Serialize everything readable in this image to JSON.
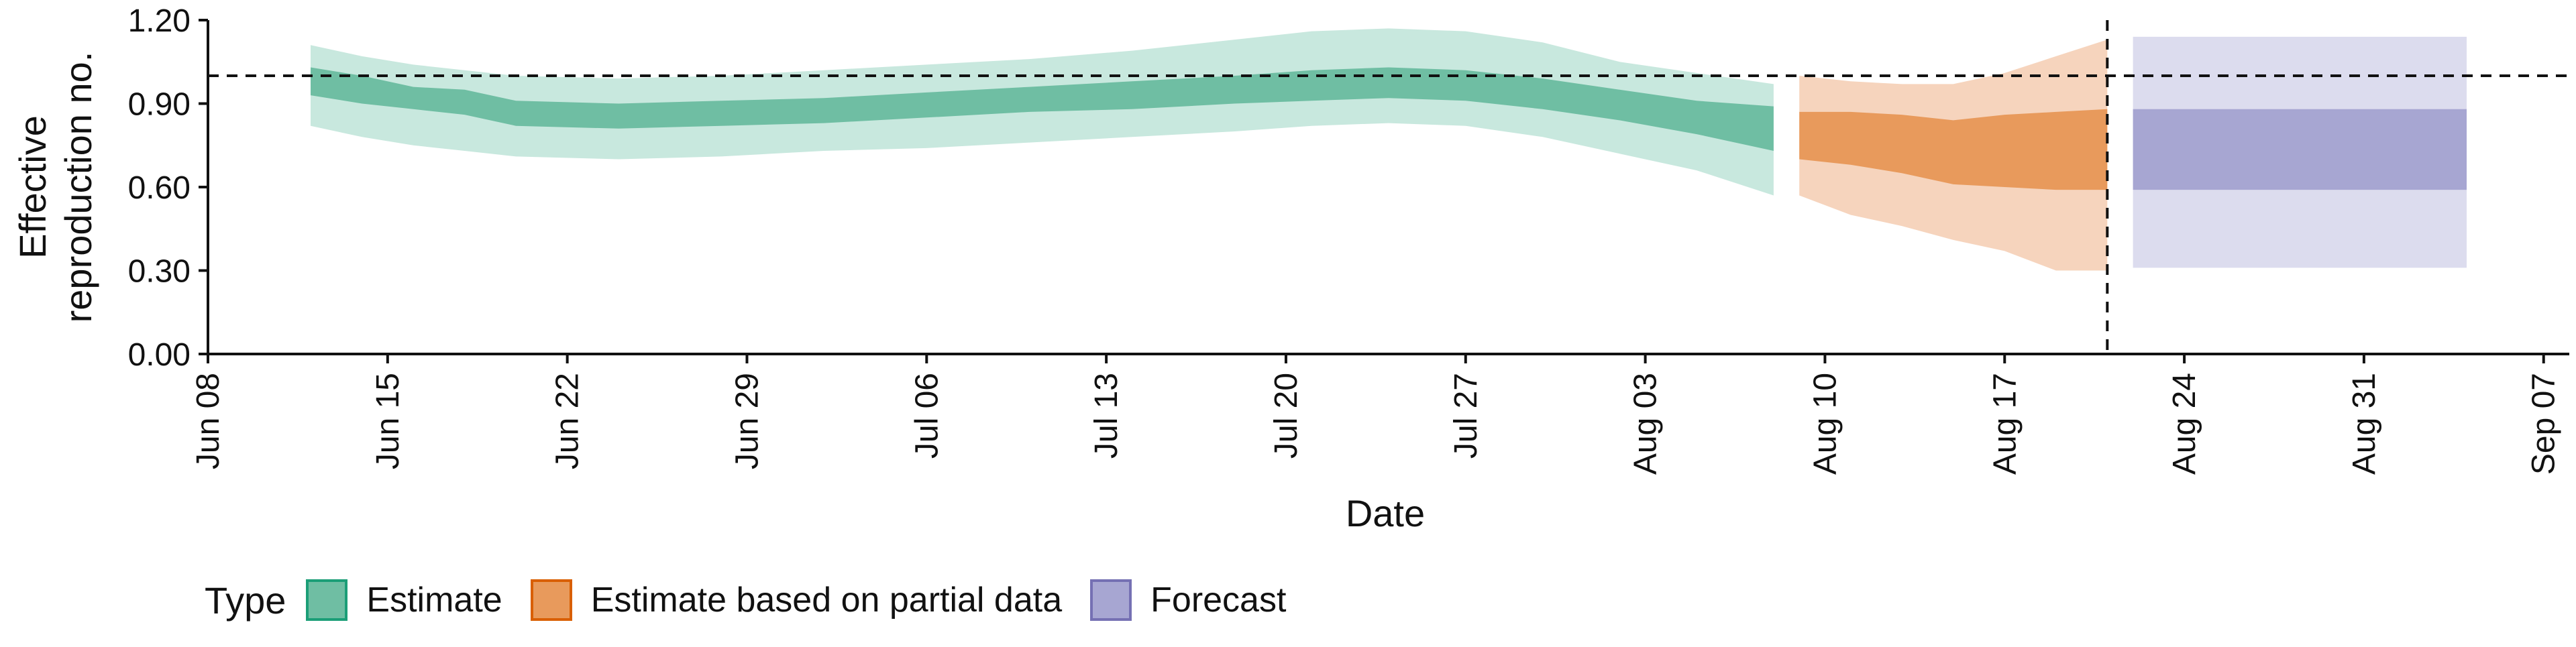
{
  "chart_data": {
    "type": "area",
    "xlabel": "Date",
    "ylabel_lines": [
      "Effective",
      "reproduction no."
    ],
    "ylim": [
      0,
      1.2
    ],
    "yticks": [
      "0.00",
      "0.30",
      "0.60",
      "0.90",
      "1.20"
    ],
    "xrange": [
      "2020-06-08",
      "2020-09-08"
    ],
    "xtick_dates": [
      "2020-06-08",
      "2020-06-15",
      "2020-06-22",
      "2020-06-29",
      "2020-07-06",
      "2020-07-13",
      "2020-07-20",
      "2020-07-27",
      "2020-08-03",
      "2020-08-10",
      "2020-08-17",
      "2020-08-24",
      "2020-08-31",
      "2020-09-07"
    ],
    "xtick_labels": [
      "Jun 08",
      "Jun 15",
      "Jun 22",
      "Jun 29",
      "Jul 06",
      "Jul 13",
      "Jul 20",
      "Jul 27",
      "Aug 03",
      "Aug 10",
      "Aug 17",
      "Aug 24",
      "Aug 31",
      "Sep 07"
    ],
    "reference_hline": 1.0,
    "reference_vline": "2020-08-21",
    "legend": {
      "title": "Type",
      "placement": "bottom",
      "items": [
        {
          "label": "Estimate",
          "fill": "#6fbea3",
          "border": "#1b9e77"
        },
        {
          "label": "Estimate based on partial data",
          "fill": "#e89a5c",
          "border": "#d95f02"
        },
        {
          "label": "Forecast",
          "fill": "#a7a6d2",
          "border": "#7570b3"
        }
      ]
    },
    "series": [
      {
        "name": "Estimate",
        "color_inner": "#6fbea3",
        "color_outer": "#c8e8de",
        "points": [
          {
            "date": "2020-06-12",
            "outer": [
              0.82,
              1.11
            ],
            "inner": [
              0.93,
              1.03
            ]
          },
          {
            "date": "2020-06-14",
            "outer": [
              0.78,
              1.07
            ],
            "inner": [
              0.9,
              1.0
            ]
          },
          {
            "date": "2020-06-16",
            "outer": [
              0.75,
              1.04
            ],
            "inner": [
              0.88,
              0.96
            ]
          },
          {
            "date": "2020-06-18",
            "outer": [
              0.73,
              1.02
            ],
            "inner": [
              0.86,
              0.95
            ]
          },
          {
            "date": "2020-06-20",
            "outer": [
              0.71,
              1.0
            ],
            "inner": [
              0.82,
              0.91
            ]
          },
          {
            "date": "2020-06-24",
            "outer": [
              0.7,
              0.99
            ],
            "inner": [
              0.81,
              0.9
            ]
          },
          {
            "date": "2020-06-28",
            "outer": [
              0.71,
              1.0
            ],
            "inner": [
              0.82,
              0.91
            ]
          },
          {
            "date": "2020-07-02",
            "outer": [
              0.73,
              1.02
            ],
            "inner": [
              0.83,
              0.92
            ]
          },
          {
            "date": "2020-07-06",
            "outer": [
              0.74,
              1.04
            ],
            "inner": [
              0.85,
              0.94
            ]
          },
          {
            "date": "2020-07-10",
            "outer": [
              0.76,
              1.06
            ],
            "inner": [
              0.87,
              0.96
            ]
          },
          {
            "date": "2020-07-14",
            "outer": [
              0.78,
              1.09
            ],
            "inner": [
              0.88,
              0.98
            ]
          },
          {
            "date": "2020-07-18",
            "outer": [
              0.8,
              1.13
            ],
            "inner": [
              0.9,
              1.0
            ]
          },
          {
            "date": "2020-07-21",
            "outer": [
              0.82,
              1.16
            ],
            "inner": [
              0.91,
              1.02
            ]
          },
          {
            "date": "2020-07-24",
            "outer": [
              0.83,
              1.17
            ],
            "inner": [
              0.92,
              1.03
            ]
          },
          {
            "date": "2020-07-27",
            "outer": [
              0.82,
              1.16
            ],
            "inner": [
              0.91,
              1.02
            ]
          },
          {
            "date": "2020-07-30",
            "outer": [
              0.78,
              1.12
            ],
            "inner": [
              0.88,
              0.99
            ]
          },
          {
            "date": "2020-08-02",
            "outer": [
              0.72,
              1.05
            ],
            "inner": [
              0.84,
              0.95
            ]
          },
          {
            "date": "2020-08-05",
            "outer": [
              0.66,
              1.01
            ],
            "inner": [
              0.79,
              0.91
            ]
          },
          {
            "date": "2020-08-08",
            "outer": [
              0.57,
              0.97
            ],
            "inner": [
              0.73,
              0.89
            ]
          }
        ]
      },
      {
        "name": "Estimate based on partial data",
        "color_inner": "#e89a5c",
        "color_outer": "#f6d4bd",
        "points": [
          {
            "date": "2020-08-09",
            "outer": [
              0.57,
              1.0
            ],
            "inner": [
              0.7,
              0.87
            ]
          },
          {
            "date": "2020-08-11",
            "outer": [
              0.5,
              0.98
            ],
            "inner": [
              0.68,
              0.87
            ]
          },
          {
            "date": "2020-08-13",
            "outer": [
              0.46,
              0.97
            ],
            "inner": [
              0.65,
              0.86
            ]
          },
          {
            "date": "2020-08-15",
            "outer": [
              0.41,
              0.97
            ],
            "inner": [
              0.61,
              0.84
            ]
          },
          {
            "date": "2020-08-17",
            "outer": [
              0.37,
              1.01
            ],
            "inner": [
              0.6,
              0.86
            ]
          },
          {
            "date": "2020-08-19",
            "outer": [
              0.3,
              1.07
            ],
            "inner": [
              0.59,
              0.87
            ]
          },
          {
            "date": "2020-08-21",
            "outer": [
              0.3,
              1.13
            ],
            "inner": [
              0.59,
              0.88
            ]
          }
        ]
      },
      {
        "name": "Forecast",
        "color_inner": "#a7a6d2",
        "color_outer": "#dcdcee",
        "points": [
          {
            "date": "2020-08-22",
            "outer": [
              0.31,
              1.14
            ],
            "inner": [
              0.59,
              0.88
            ]
          },
          {
            "date": "2020-09-04",
            "outer": [
              0.31,
              1.14
            ],
            "inner": [
              0.59,
              0.88
            ]
          }
        ]
      }
    ]
  }
}
